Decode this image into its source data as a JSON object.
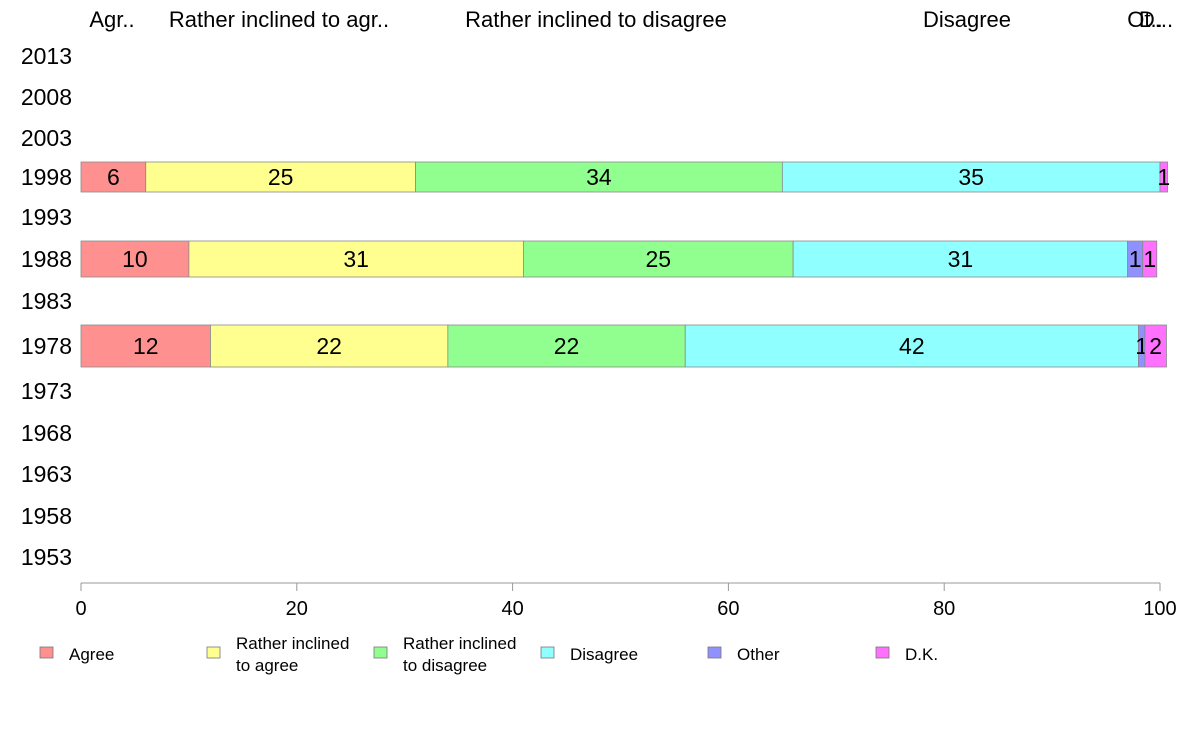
{
  "chart_data": {
    "type": "bar",
    "orientation": "horizontal",
    "stacked": true,
    "title": "",
    "xlabel": "",
    "ylabel": "",
    "xlim": [
      0,
      100
    ],
    "x_ticks": [
      "0",
      "20",
      "40",
      "60",
      "80",
      "100"
    ],
    "categories": [
      "2013",
      "2008",
      "2003",
      "1998",
      "1993",
      "1988",
      "1983",
      "1978",
      "1973",
      "1968",
      "1963",
      "1958",
      "1953"
    ],
    "top_labels": [
      "Agr..",
      "Rather inclined to agr..",
      "Rather inclined to disagree",
      "Disagree",
      "Ot..",
      "D..."
    ],
    "grid": false,
    "legend_position": "bottom",
    "legend": [
      {
        "label": "Agree",
        "color": "#ff9090"
      },
      {
        "label": "Rather inclined\nto agree",
        "color": "#ffff90"
      },
      {
        "label": "Rather inclined\nto disagree",
        "color": "#90ff90"
      },
      {
        "label": "Disagree",
        "color": "#90ffff"
      },
      {
        "label": "Other",
        "color": "#9090ff"
      },
      {
        "label": "D.K.",
        "color": "#ff70ff"
      }
    ],
    "series": [
      {
        "name": "Agree",
        "color": "#ff9090",
        "values": [
          null,
          null,
          null,
          6,
          null,
          10,
          null,
          12,
          null,
          null,
          null,
          null,
          null
        ],
        "labels": [
          null,
          null,
          null,
          "6",
          null,
          "10",
          null,
          "12",
          null,
          null,
          null,
          null,
          null
        ]
      },
      {
        "name": "Rather inclined to agree",
        "color": "#ffff90",
        "values": [
          null,
          null,
          null,
          25,
          null,
          31,
          null,
          22,
          null,
          null,
          null,
          null,
          null
        ],
        "labels": [
          null,
          null,
          null,
          "25",
          null,
          "31",
          null,
          "22",
          null,
          null,
          null,
          null,
          null
        ]
      },
      {
        "name": "Rather inclined to disagree",
        "color": "#90ff90",
        "values": [
          null,
          null,
          null,
          34,
          null,
          25,
          null,
          22,
          null,
          null,
          null,
          null,
          null
        ],
        "labels": [
          null,
          null,
          null,
          "34",
          null,
          "25",
          null,
          "22",
          null,
          null,
          null,
          null,
          null
        ]
      },
      {
        "name": "Disagree",
        "color": "#90ffff",
        "values": [
          null,
          null,
          null,
          35,
          null,
          31,
          null,
          42,
          null,
          null,
          null,
          null,
          null
        ],
        "labels": [
          null,
          null,
          null,
          "35",
          null,
          "31",
          null,
          "42",
          null,
          null,
          null,
          null,
          null
        ]
      },
      {
        "name": "Other",
        "color": "#9090ff",
        "values": [
          null,
          null,
          null,
          0,
          null,
          1.4,
          null,
          0.6,
          null,
          null,
          null,
          null,
          null
        ],
        "labels": [
          null,
          null,
          null,
          null,
          null,
          "1",
          null,
          "1",
          null,
          null,
          null,
          null,
          null
        ]
      },
      {
        "name": "D.K.",
        "color": "#ff70ff",
        "values": [
          null,
          null,
          null,
          0.7,
          null,
          1.3,
          null,
          2,
          null,
          null,
          null,
          null,
          null
        ],
        "labels": [
          null,
          null,
          null,
          "1",
          null,
          "1",
          null,
          "2",
          null,
          null,
          null,
          null,
          null
        ]
      }
    ]
  }
}
